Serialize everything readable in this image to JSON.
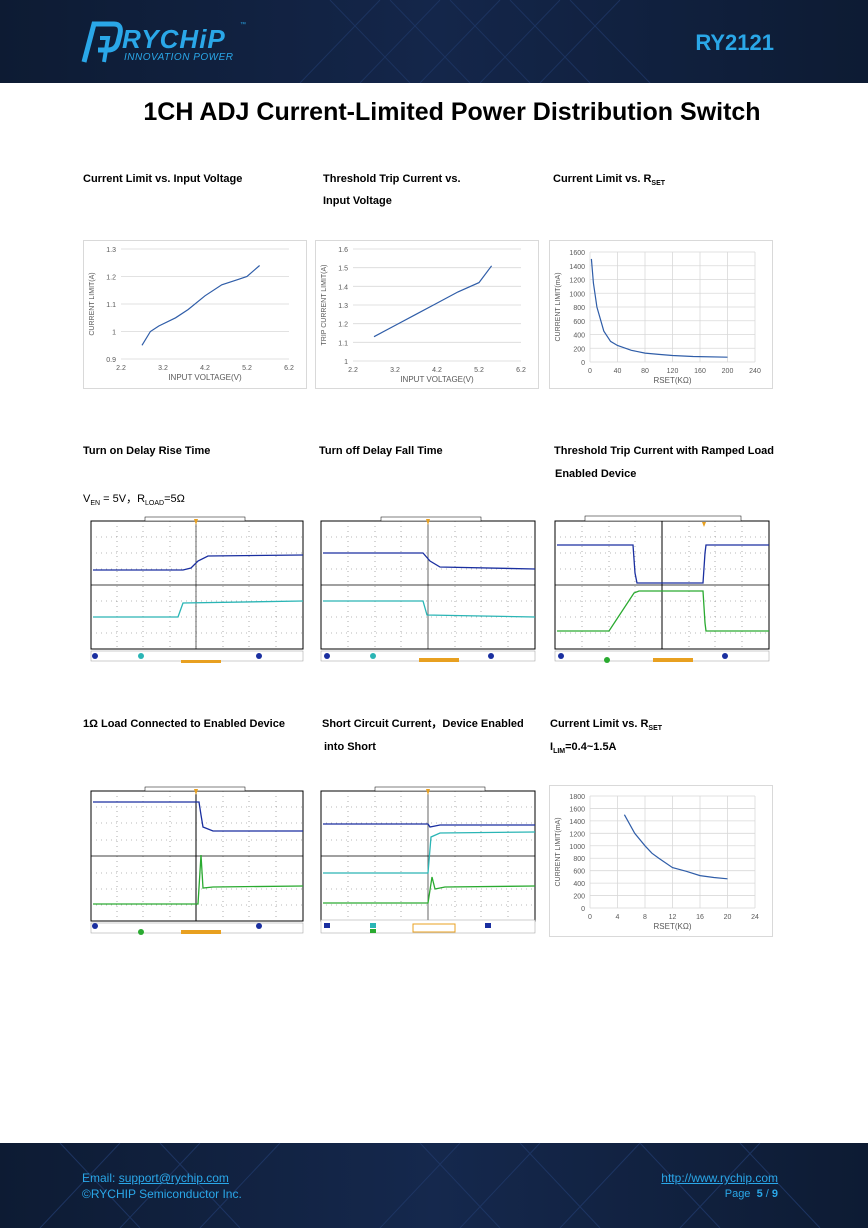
{
  "header": {
    "logo_text": "RYCHiP",
    "logo_tm": "™",
    "logo_subtitle": "INNOVATION POWER",
    "part_number": "RY2121"
  },
  "title": "1CH ADJ Current-Limited Power Distribution Switch",
  "captions": {
    "c1": "Current Limit vs. Input Voltage",
    "c2a": "Threshold Trip Current vs.",
    "c2b": "Input Voltage",
    "c3": "Current Limit vs. R",
    "c3_sub": "SET",
    "c4": "Turn on Delay Rise Time",
    "c4_cond_a": "V",
    "c4_cond_a_sub": "EN",
    "c4_cond_b": " = 5V，R",
    "c4_cond_b_sub": "LOAD",
    "c4_cond_c": "=5Ω",
    "c5": "Turn off Delay Fall Time",
    "c6a": "Threshold Trip Current with Ramped Load",
    "c6b": "Enabled Device",
    "c7": "1Ω Load Connected to Enabled Device",
    "c8a": "Short Circuit Current，Device Enabled",
    "c8b": "into Short",
    "c9": "Current Limit vs. R",
    "c9_sub": "SET",
    "c9_cond_a": "I",
    "c9_cond_a_sub": "LIM",
    "c9_cond_b": "=0.4~1.5A"
  },
  "chart_data": [
    {
      "type": "line",
      "title": "Current Limit vs. Input Voltage",
      "xlabel": "INPUT VOLTAGE(V)",
      "ylabel": "CURRENT LIMIT(A)",
      "xlim": [
        2.2,
        6.2
      ],
      "ylim": [
        0.9,
        1.3
      ],
      "xticks": [
        "2.2",
        "3.2",
        "4.2",
        "5.2",
        "6.2"
      ],
      "yticks": [
        "0.9",
        "1",
        "1.1",
        "1.2",
        "1.3"
      ],
      "x": [
        2.7,
        2.9,
        3.1,
        3.5,
        3.8,
        4.2,
        4.6,
        5.0,
        5.2,
        5.5
      ],
      "y": [
        0.95,
        1.0,
        1.02,
        1.05,
        1.08,
        1.13,
        1.17,
        1.19,
        1.2,
        1.24
      ]
    },
    {
      "type": "line",
      "title": "Threshold Trip Current vs. Input Voltage",
      "xlabel": "INPUT VOLTAGE(V)",
      "ylabel": "TRIP CURRENT LIMIT(A)",
      "xlim": [
        2.2,
        6.2
      ],
      "ylim": [
        1.0,
        1.6
      ],
      "xticks": [
        "2.2",
        "3.2",
        "4.2",
        "5.2",
        "6.2"
      ],
      "yticks": [
        "1",
        "1.1",
        "1.2",
        "1.3",
        "1.4",
        "1.5",
        "1.6"
      ],
      "x": [
        2.7,
        3.2,
        3.7,
        4.2,
        4.7,
        5.2,
        5.5
      ],
      "y": [
        1.13,
        1.19,
        1.25,
        1.31,
        1.37,
        1.42,
        1.51
      ]
    },
    {
      "type": "line",
      "title": "Current Limit vs. RSET",
      "xlabel": "RSET(KΩ)",
      "ylabel": "CURRENT LIMIT(mA)",
      "xlim": [
        0,
        240
      ],
      "ylim": [
        0,
        1600
      ],
      "xticks": [
        "0",
        "40",
        "80",
        "120",
        "160",
        "200",
        "240"
      ],
      "yticks": [
        "0",
        "200",
        "400",
        "600",
        "800",
        "1000",
        "1200",
        "1400",
        "1600"
      ],
      "x": [
        2,
        5,
        10,
        20,
        30,
        40,
        60,
        80,
        100,
        120,
        150,
        200
      ],
      "y": [
        1500,
        1150,
        800,
        450,
        300,
        240,
        170,
        130,
        110,
        95,
        80,
        70
      ]
    },
    {
      "type": "line",
      "title": "Current Limit vs. RSET (ILIM=0.4~1.5A)",
      "xlabel": "RSET(KΩ)",
      "ylabel": "CURRENT LIMIT(mA)",
      "xlim": [
        0,
        24
      ],
      "ylim": [
        0,
        1800
      ],
      "xticks": [
        "0",
        "4",
        "8",
        "12",
        "16",
        "20",
        "24"
      ],
      "yticks": [
        "0",
        "200",
        "400",
        "600",
        "800",
        "1000",
        "1200",
        "1400",
        "1600",
        "1800"
      ],
      "x": [
        5,
        6.5,
        8,
        9,
        10,
        12,
        14,
        16,
        18,
        20
      ],
      "y": [
        1500,
        1200,
        1000,
        880,
        800,
        650,
        590,
        520,
        490,
        470
      ]
    }
  ],
  "footer": {
    "email_label": "Email: ",
    "email": "support@rychip.com",
    "copyright": "©RYCHIP Semiconductor Inc.",
    "website": "http://www.rychip.com",
    "page_label": "Page",
    "page_current": "5",
    "page_sep": "/",
    "page_total": "9"
  }
}
